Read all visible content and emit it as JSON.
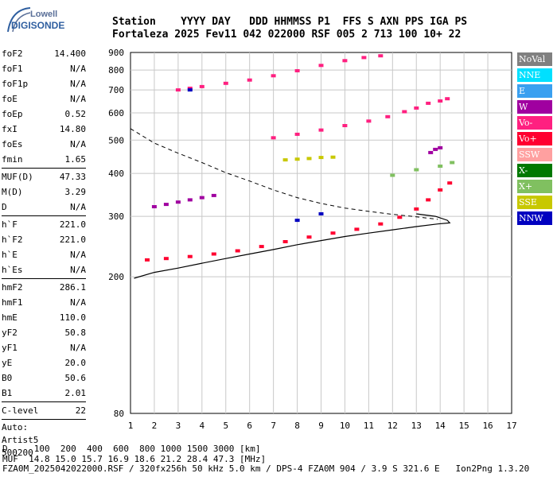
{
  "logo": {
    "brand": "Lowell",
    "product": "DIGISONDE"
  },
  "header": {
    "line1": "Station    YYYY DAY   DDD HHMMSS P1  FFS S AXN PPS IGA PS",
    "line2": "Fortaleza 2025 Fev11 042 022000 RSF 005 2 713 100 10+ 22"
  },
  "params": {
    "group1": [
      {
        "k": "foF2",
        "v": "14.400"
      },
      {
        "k": "foF1",
        "v": "N/A"
      },
      {
        "k": "foF1p",
        "v": "N/A"
      },
      {
        "k": "foE",
        "v": "N/A"
      },
      {
        "k": "foEp",
        "v": "0.52"
      },
      {
        "k": "fxI",
        "v": "14.80"
      },
      {
        "k": "foEs",
        "v": "N/A"
      },
      {
        "k": "fmin",
        "v": "1.65"
      }
    ],
    "group2": [
      {
        "k": "MUF(D)",
        "v": "47.33"
      },
      {
        "k": "M(D)",
        "v": "3.29"
      },
      {
        "k": "D",
        "v": "N/A"
      }
    ],
    "group3": [
      {
        "k": "h`F",
        "v": "221.0"
      },
      {
        "k": "h`F2",
        "v": "221.0"
      },
      {
        "k": "h`E",
        "v": "N/A"
      },
      {
        "k": "h`Es",
        "v": "N/A"
      }
    ],
    "group4": [
      {
        "k": "hmF2",
        "v": "286.1"
      },
      {
        "k": "hmF1",
        "v": "N/A"
      },
      {
        "k": "hmE",
        "v": "110.0"
      },
      {
        "k": "yF2",
        "v": "50.8"
      },
      {
        "k": "yF1",
        "v": "N/A"
      },
      {
        "k": "yE",
        "v": "20.0"
      },
      {
        "k": "B0",
        "v": "50.6"
      },
      {
        "k": "B1",
        "v": "2.01"
      }
    ],
    "group5": [
      {
        "k": "C-level",
        "v": "22"
      }
    ],
    "auto": [
      "Auto:",
      "Artist5",
      "500200"
    ]
  },
  "legend": [
    {
      "label": "NoVal",
      "color": "#808080"
    },
    {
      "label": "NNE",
      "color": "#00e0ff"
    },
    {
      "label": "E",
      "color": "#3aa0f0"
    },
    {
      "label": "W",
      "color": "#a000a0"
    },
    {
      "label": "Vo-",
      "color": "#ff2080"
    },
    {
      "label": "Vo+",
      "color": "#ff0030"
    },
    {
      "label": "SSW",
      "color": "#ffa0a0"
    },
    {
      "label": "X-",
      "color": "#007800"
    },
    {
      "label": "X+",
      "color": "#80c060"
    },
    {
      "label": "SSE",
      "color": "#c8c800"
    },
    {
      "label": "NNW",
      "color": "#0000c0"
    }
  ],
  "chart_data": {
    "type": "scatter",
    "xlabel": "",
    "ylabel": "",
    "xlim": [
      1,
      17
    ],
    "x_scale": "linear",
    "ylim": [
      80,
      900
    ],
    "y_scale": "log",
    "x_ticks": [
      "1",
      "2",
      "3",
      "4",
      "5",
      "6",
      "7",
      "8",
      "9",
      "10",
      "11",
      "12",
      "13",
      "14",
      "15",
      "16",
      "17"
    ],
    "y_ticks": [
      {
        "value": 80,
        "label": "80"
      },
      {
        "value": 200,
        "label": "200"
      },
      {
        "value": 300,
        "label": "300"
      },
      {
        "value": 400,
        "label": "400"
      },
      {
        "value": 500,
        "label": "500"
      },
      {
        "value": 600,
        "label": "600"
      },
      {
        "value": 700,
        "label": "700"
      },
      {
        "value": 800,
        "label": "800"
      },
      {
        "value": 900,
        "label": "900"
      }
    ],
    "grid": true,
    "legend_position": "right",
    "series": [
      {
        "color": "#ff0030",
        "points": [
          [
            1.7,
            224
          ],
          [
            2.5,
            226
          ],
          [
            3.5,
            229
          ],
          [
            4.5,
            233
          ],
          [
            5.5,
            238
          ],
          [
            6.5,
            245
          ],
          [
            7.5,
            253
          ],
          [
            8.5,
            261
          ],
          [
            9.5,
            268
          ],
          [
            10.5,
            275
          ],
          [
            11.5,
            285
          ],
          [
            12.3,
            298
          ],
          [
            13,
            315
          ],
          [
            13.5,
            335
          ],
          [
            14,
            358
          ],
          [
            14.4,
            375
          ]
        ]
      },
      {
        "color": "#ff2080",
        "points": [
          [
            3,
            700
          ],
          [
            3.5,
            708
          ],
          [
            4,
            716
          ],
          [
            5,
            732
          ],
          [
            6,
            748
          ],
          [
            7,
            770
          ],
          [
            8,
            796
          ],
          [
            9,
            825
          ],
          [
            10,
            852
          ],
          [
            10.8,
            870
          ],
          [
            11.5,
            880
          ]
        ]
      },
      {
        "color": "#ff2080",
        "points": [
          [
            7,
            508
          ],
          [
            8,
            520
          ],
          [
            9,
            535
          ],
          [
            10,
            551
          ],
          [
            11,
            568
          ],
          [
            11.8,
            585
          ],
          [
            12.5,
            605
          ],
          [
            13,
            620
          ],
          [
            13.5,
            640
          ],
          [
            14,
            650
          ],
          [
            14.3,
            660
          ]
        ]
      },
      {
        "color": "#a000a0",
        "points": [
          [
            2,
            320
          ],
          [
            2.5,
            325
          ],
          [
            3,
            330
          ],
          [
            3.5,
            335
          ],
          [
            4,
            340
          ],
          [
            4.5,
            345
          ]
        ]
      },
      {
        "color": "#a000a0",
        "points": [
          [
            13.6,
            460
          ],
          [
            13.8,
            470
          ],
          [
            14,
            475
          ]
        ]
      },
      {
        "color": "#c8c800",
        "points": [
          [
            7.5,
            438
          ],
          [
            8,
            440
          ],
          [
            8.5,
            442
          ],
          [
            9,
            445
          ],
          [
            9.5,
            446
          ]
        ]
      },
      {
        "color": "#80c060",
        "points": [
          [
            12,
            395
          ],
          [
            13,
            410
          ],
          [
            14,
            420
          ],
          [
            14.5,
            430
          ]
        ]
      },
      {
        "color": "#0000c0",
        "points": [
          [
            3.5,
            700
          ],
          [
            8,
            292
          ],
          [
            9,
            305
          ]
        ]
      }
    ],
    "profile_solid": [
      [
        1.15,
        198
      ],
      [
        2,
        206
      ],
      [
        3,
        212
      ],
      [
        4,
        219
      ],
      [
        5,
        226
      ],
      [
        6,
        233
      ],
      [
        7,
        240
      ],
      [
        8,
        248
      ],
      [
        9,
        255
      ],
      [
        10,
        262
      ],
      [
        11,
        268
      ],
      [
        12,
        274
      ],
      [
        13,
        280
      ],
      [
        13.9,
        285
      ],
      [
        14.4,
        287
      ],
      [
        14.3,
        292
      ],
      [
        13.8,
        300
      ],
      [
        13,
        305
      ]
    ],
    "profile_dashed": [
      [
        1,
        540
      ],
      [
        2,
        490
      ],
      [
        3,
        458
      ],
      [
        4,
        430
      ],
      [
        5,
        402
      ],
      [
        6,
        380
      ],
      [
        7,
        358
      ],
      [
        8,
        340
      ],
      [
        9,
        327
      ],
      [
        10,
        317
      ],
      [
        11,
        310
      ],
      [
        12,
        304
      ],
      [
        13,
        299
      ],
      [
        13.9,
        294
      ]
    ]
  },
  "footer": {
    "line1": "D     100  200  400  600  800 1000 1500 3000 [km]",
    "line2": "MUF  14.8 15.0 15.7 16.9 18.6 21.2 28.4 47.3 [MHz]",
    "line3": "FZA0M_2025042022000.RSF / 320fx256h 50 kHz 5.0 km / DPS-4 FZA0M 904 / 3.9 S 321.6 E   Ion2Png 1.3.20"
  }
}
